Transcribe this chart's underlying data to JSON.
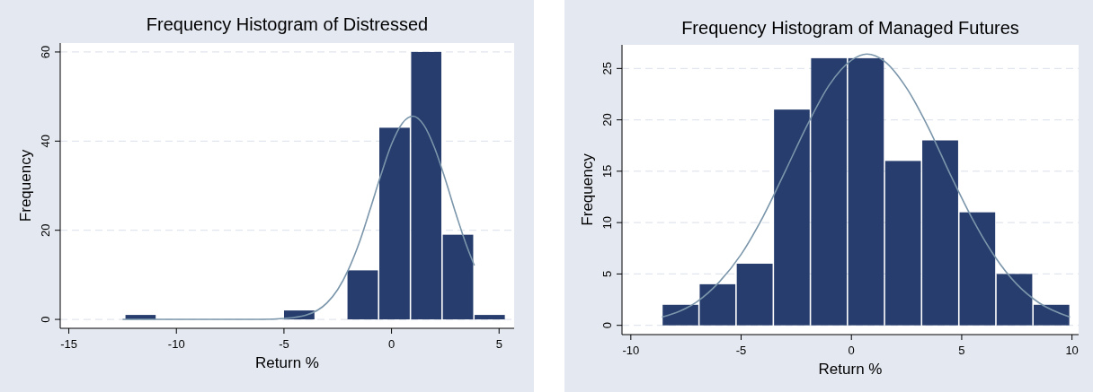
{
  "chart_data": [
    {
      "type": "histogram",
      "title": "Frequency Histogram of Distressed",
      "xlabel": "Return %",
      "ylabel": "Frequency",
      "bins": [
        -12.4,
        -10.93,
        -9.45,
        -7.98,
        -6.5,
        -5.03,
        -3.55,
        -2.08,
        -0.6,
        0.88,
        2.35,
        3.83,
        5.3
      ],
      "values": [
        1,
        0,
        0,
        0,
        0,
        2,
        0,
        11,
        43,
        60,
        19,
        1
      ],
      "color": "#263d6d",
      "xlim": [
        -15.4,
        5.7
      ],
      "xticks": [
        -15,
        -10,
        -5,
        0,
        5
      ],
      "ylim": [
        -2,
        62
      ],
      "yticks": [
        0,
        20,
        40,
        60
      ],
      "grid": "y",
      "series": [
        {
          "type": "line",
          "color": "#7b96ab",
          "x": [
            -12.5,
            -8,
            -6,
            -5,
            -4,
            -3,
            -2.5,
            -2,
            -1.5,
            -1,
            -0.5,
            0,
            0.5,
            1,
            1.5,
            2,
            2.5,
            3,
            3.5,
            3.85
          ],
          "values": [
            0,
            0,
            0,
            0.2,
            0.9,
            3.7,
            6.7,
            11.2,
            17.2,
            24.6,
            32.3,
            39.3,
            44,
            45.6,
            43.6,
            38.5,
            31.4,
            23.6,
            16.4,
            12.1
          ]
        }
      ]
    },
    {
      "type": "histogram",
      "title": "Frequency Histogram of Managed Futures",
      "xlabel": "Return %",
      "ylabel": "Frequency",
      "bins": [
        -8.59,
        -6.91,
        -5.23,
        -3.54,
        -1.86,
        -0.18,
        1.5,
        3.18,
        4.87,
        6.55,
        8.23,
        9.91
      ],
      "values": [
        2,
        4,
        6,
        21,
        26,
        26,
        16,
        18,
        11,
        5,
        2
      ],
      "color": "#263d6d",
      "xlim": [
        -10.4,
        10.3
      ],
      "xticks": [
        -10,
        -5,
        0,
        5,
        10
      ],
      "ylim": [
        -0.9,
        27.3
      ],
      "yticks": [
        0,
        5,
        10,
        15,
        20,
        25
      ],
      "grid": "y",
      "series": [
        {
          "type": "line",
          "color": "#7b96ab",
          "x": [
            -8.59,
            -7,
            -6,
            -5,
            -4,
            -3,
            -2,
            -1,
            0,
            0.7,
            1.5,
            2.5,
            3.5,
            4.5,
            5.5,
            6.5,
            7.5,
            8.5,
            9.91
          ],
          "values": [
            0.8,
            2.3,
            4.2,
            6.9,
            10.6,
            15,
            19.5,
            23.4,
            25.8,
            26.4,
            25.7,
            23.1,
            19.2,
            14.6,
            10.3,
            6.7,
            4,
            2.2,
            0.8
          ]
        }
      ]
    }
  ]
}
